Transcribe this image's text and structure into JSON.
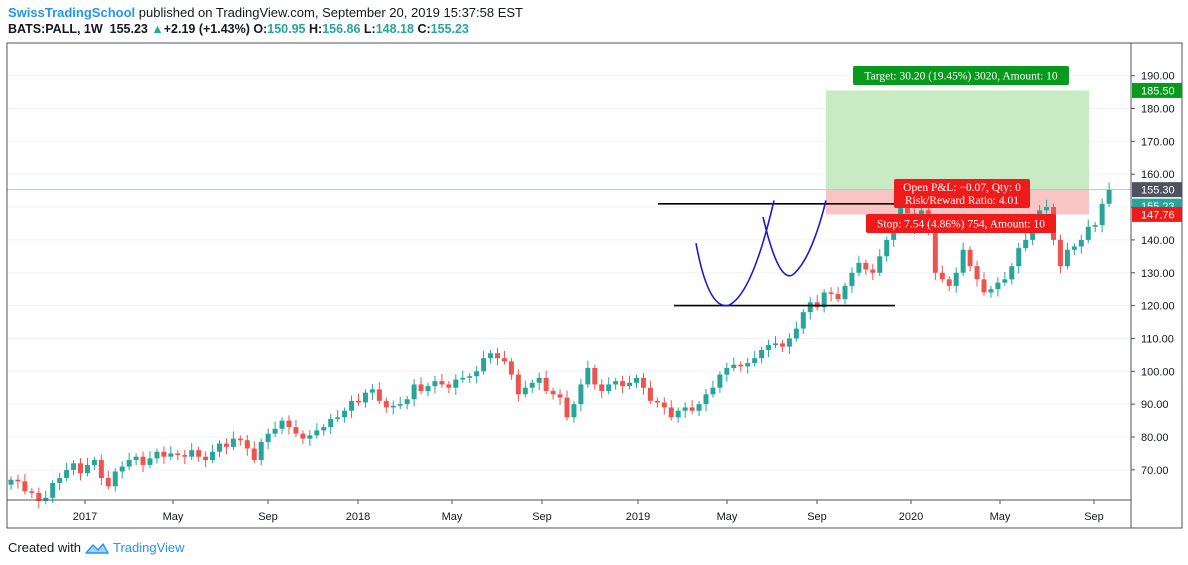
{
  "header": {
    "brand": "SwissTradingSchool",
    "published": "published on TradingView.com, September 20, 2019 15:37:58 EST",
    "symbol": "BATS:PALL, 1W",
    "last": "155.23",
    "change": "+2.19 (+1.43%)",
    "o_label": "O:",
    "o_val": "150.95",
    "h_label": "H:",
    "h_val": "156.86",
    "l_label": "L:",
    "l_val": "148.18",
    "c_label": "C:",
    "c_val": "155.23"
  },
  "footer": {
    "created": "Created with",
    "brand": "TradingView"
  },
  "colors": {
    "up": "#26a69a",
    "down": "#ef5350",
    "target_zone": "#c8ebc4",
    "stop_zone": "#f9c4c4",
    "label_green": "#089a1d",
    "label_red": "#ef1a1a",
    "arc": "#1a1ad4"
  },
  "chart_data": {
    "type": "candlestick",
    "interval": "1W",
    "ylim": [
      60,
      195
    ],
    "yticks": [
      70,
      80,
      90,
      100,
      110,
      120,
      130,
      140,
      150,
      160,
      170,
      180,
      190
    ],
    "ytick_labels": [
      "70.00",
      "80.00",
      "90.00",
      "100.00",
      "110.00",
      "120.00",
      "130.00",
      "140.00",
      "150.00",
      "160.00",
      "170.00",
      "180.00",
      "190.00"
    ],
    "xticks": [
      "2017",
      "May",
      "Sep",
      "2018",
      "May",
      "Sep",
      "2019",
      "May",
      "Sep",
      "2020",
      "May",
      "Sep"
    ],
    "closes": [
      67.0,
      66.5,
      63.5,
      63.0,
      60.5,
      61.5,
      66.0,
      67.5,
      70.0,
      72.0,
      69.0,
      71.5,
      73.0,
      67.5,
      65.0,
      69.5,
      71.0,
      73.0,
      74.0,
      71.5,
      73.5,
      75.5,
      74.0,
      75.0,
      74.5,
      74.0,
      76.0,
      74.0,
      73.0,
      75.5,
      78.0,
      77.0,
      79.5,
      79.0,
      76.5,
      73.0,
      78.5,
      81.0,
      82.5,
      85.0,
      83.0,
      81.0,
      79.5,
      80.5,
      82.0,
      83.0,
      85.5,
      86.0,
      88.0,
      91.0,
      90.5,
      93.5,
      94.5,
      91.0,
      89.0,
      89.5,
      90.0,
      91.5,
      96.0,
      94.0,
      95.5,
      97.0,
      96.0,
      95.0,
      97.5,
      98.0,
      98.5,
      100.0,
      104.0,
      105.5,
      104.0,
      103.0,
      99.0,
      93.0,
      95.0,
      96.5,
      98.0,
      94.0,
      93.0,
      92.0,
      86.0,
      90.0,
      96.0,
      101.0,
      96.0,
      94.0,
      96.0,
      97.0,
      95.5,
      96.5,
      98.0,
      95.0,
      91.0,
      90.5,
      89.0,
      86.0,
      88.0,
      89.0,
      88.0,
      90.0,
      93.0,
      95.0,
      99.0,
      101.0,
      102.0,
      101.5,
      102.5,
      104.0,
      106.5,
      108.0,
      108.5,
      107.5,
      110.0,
      113.0,
      118.0,
      121.0,
      119.5,
      124.0,
      123.5,
      122.0,
      126.0,
      130.0,
      133.0,
      131.0,
      130.0,
      135.0,
      140.0,
      144.0,
      150.0,
      148.0,
      144.0,
      149.0,
      143.0,
      130.0,
      128.0,
      126.0,
      130.0,
      137.0,
      132.0,
      128.0,
      124.0,
      125.0,
      127.0,
      128.0,
      132.0,
      137.5,
      140.0,
      146.0,
      149.0,
      150.0,
      140.0,
      132.0,
      137.0,
      138.0,
      140.0,
      144.0,
      144.5,
      151.0,
      155.2
    ],
    "current_price": 155.3,
    "last_close": 155.23,
    "target_price": 185.5,
    "stop_price": 147.76,
    "entry_price": 155.3,
    "resistance_level": 151,
    "support_level": 120,
    "labels": {
      "target": "Target: 30.20 (19.45%) 3020, Amount: 10",
      "open_pnl": "Open P&L: −0.07, Qty: 0",
      "risk_reward": "Risk/Reward Ratio: 4.01",
      "stop": "Stop: 7.54 (4.86%) 754, Amount: 10",
      "price_target": "185.50",
      "price_current": "155.30",
      "price_last": "155.23",
      "price_stop": "147.76"
    }
  }
}
